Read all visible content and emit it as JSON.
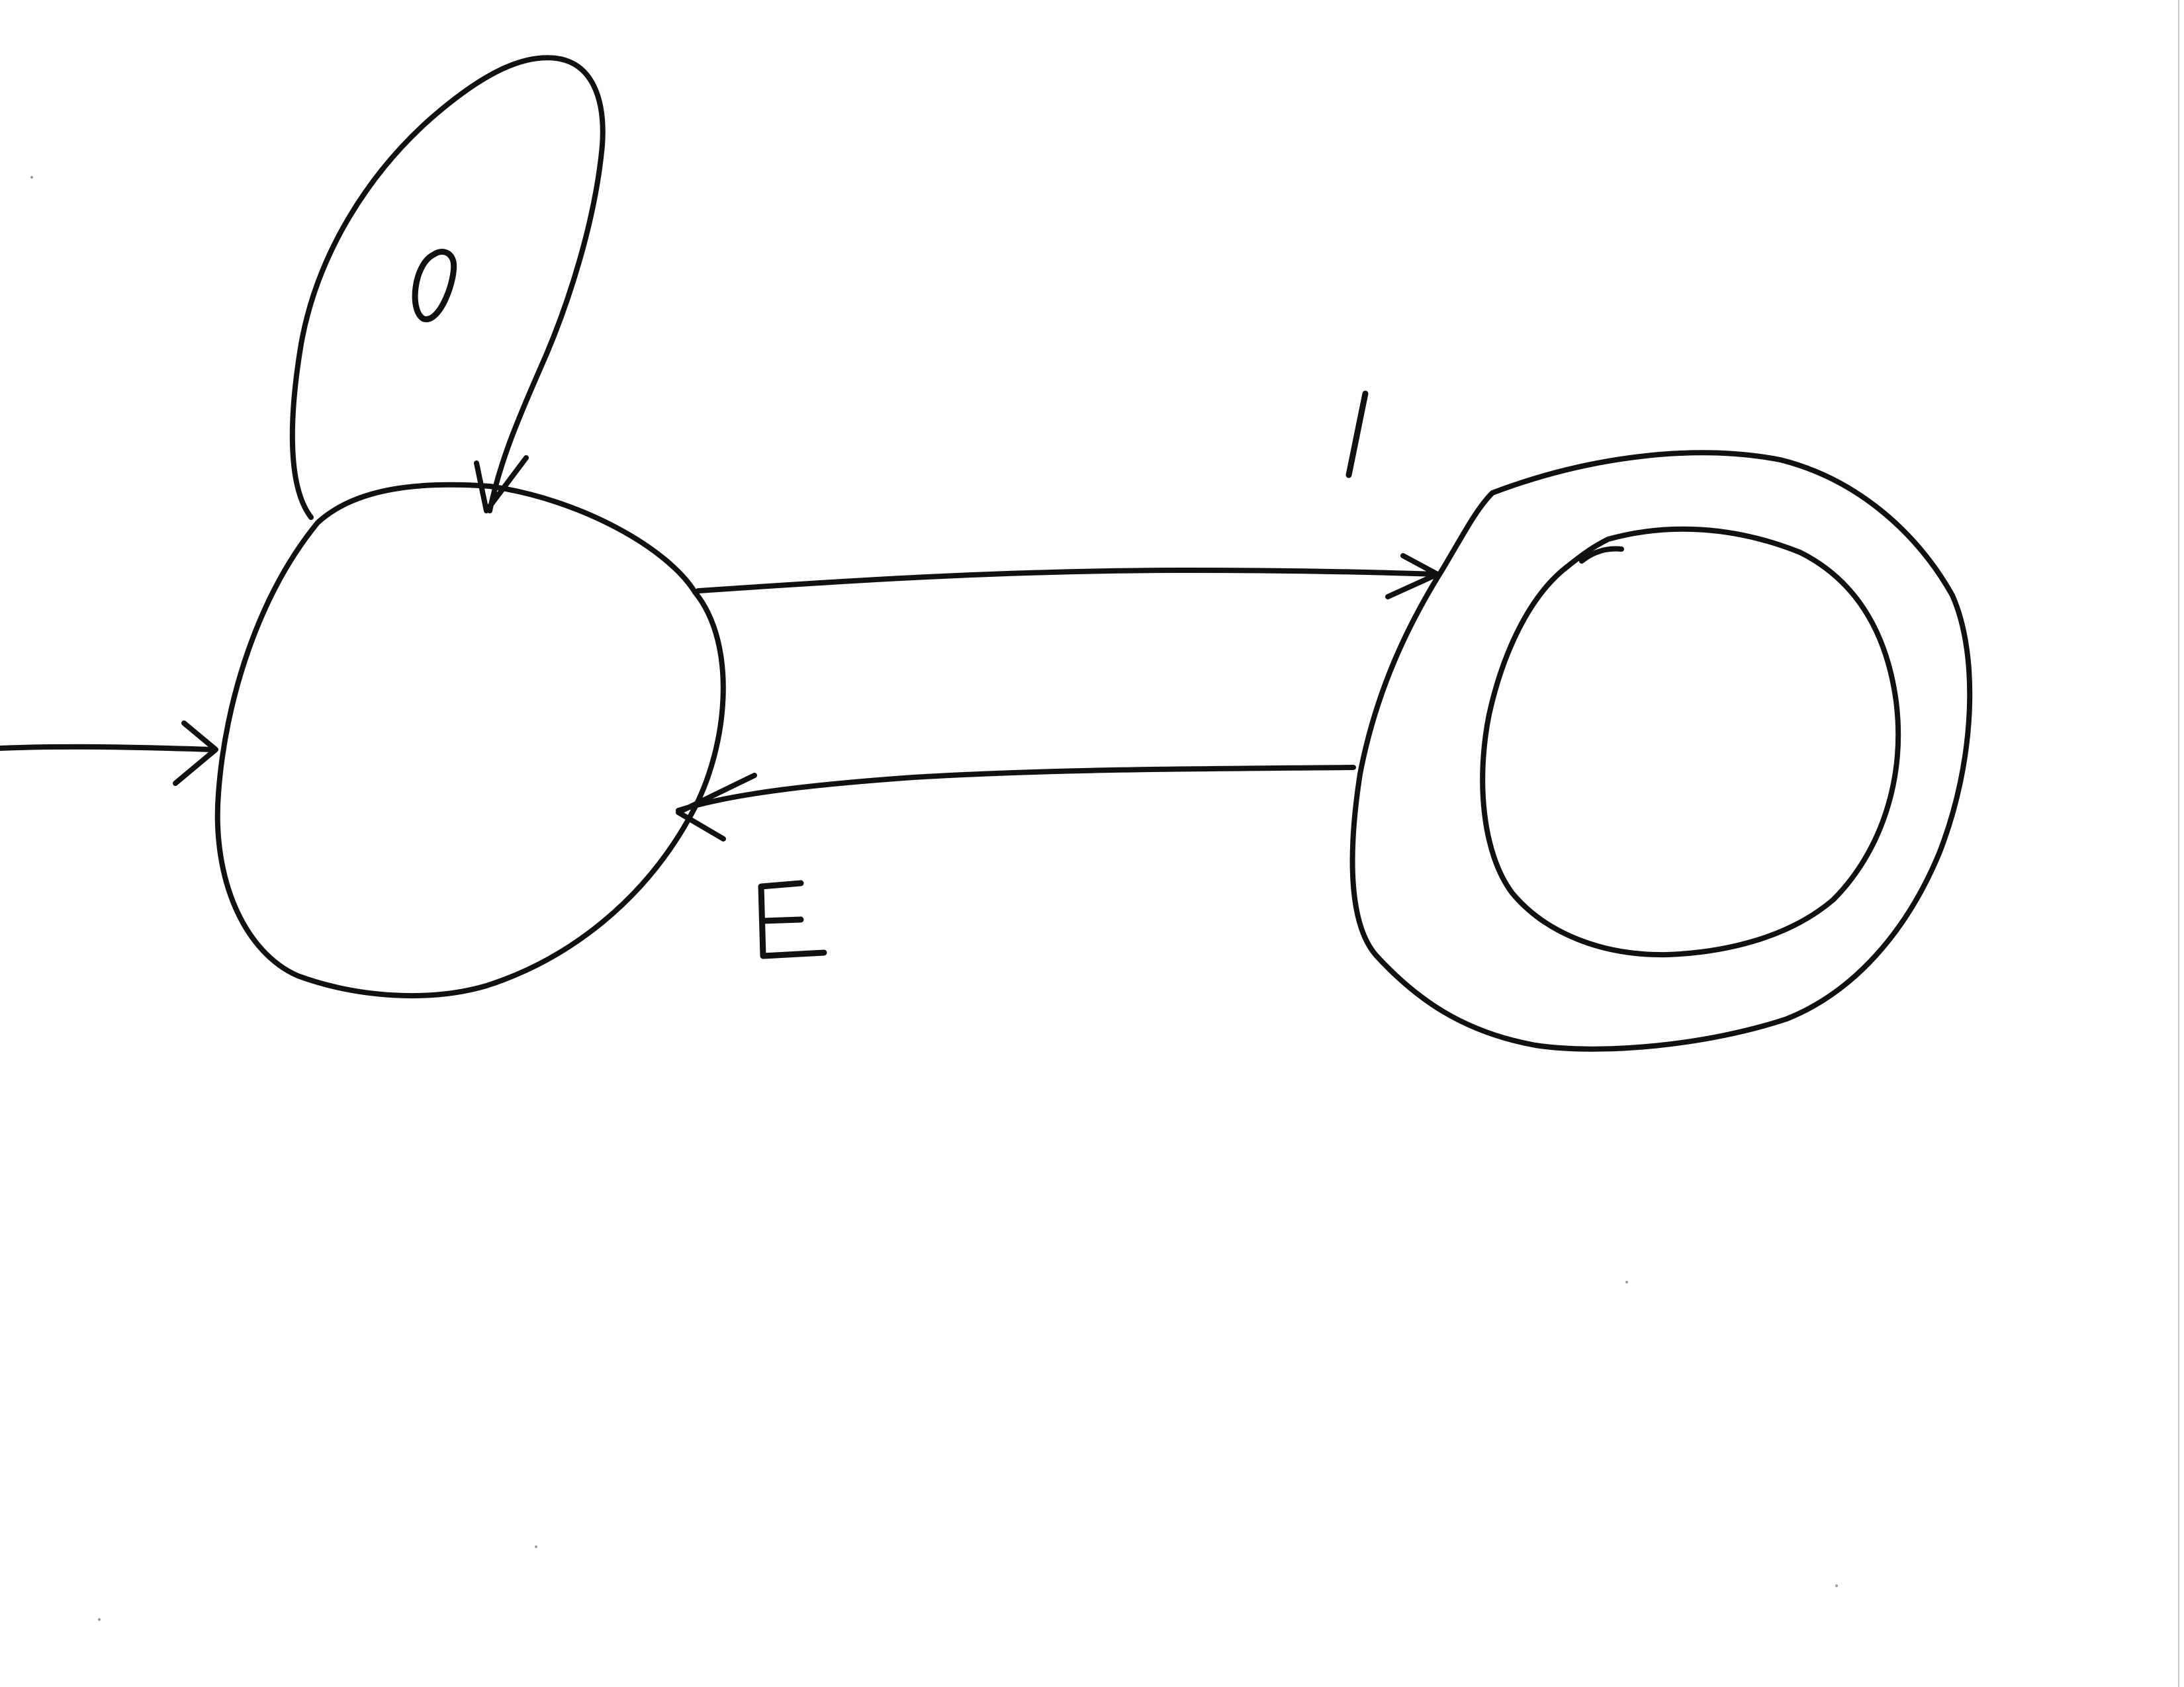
{
  "diagram": {
    "type": "state-diagram",
    "states": [
      {
        "id": "q0",
        "role": "start",
        "accepting": false
      },
      {
        "id": "q1",
        "role": "accept",
        "accepting": true
      }
    ],
    "transitions": [
      {
        "from": "start",
        "to": "q0",
        "label": ""
      },
      {
        "from": "q0",
        "to": "q0",
        "label": "0"
      },
      {
        "from": "q0",
        "to": "q1",
        "label": "1"
      },
      {
        "from": "q1",
        "to": "q0",
        "label": "E"
      }
    ]
  },
  "labels": {
    "loop": "0",
    "forward": "1",
    "back": "E"
  },
  "colors": {
    "ink": "#111111",
    "paper": "#ffffff"
  }
}
